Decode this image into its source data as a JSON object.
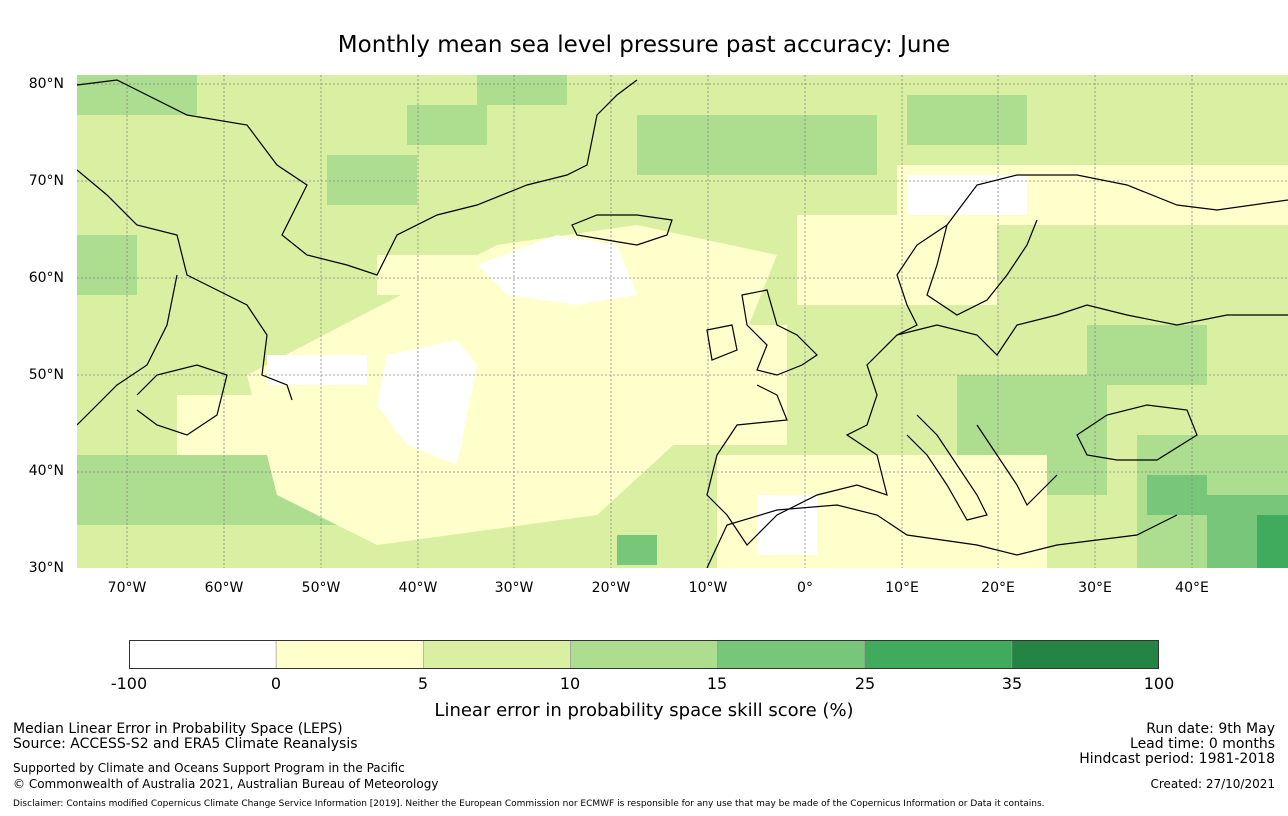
{
  "title": "Monthly mean sea level pressure past accuracy: June",
  "map": {
    "lat_labels": [
      "80°N",
      "70°N",
      "60°N",
      "50°N",
      "40°N",
      "30°N"
    ],
    "lon_labels": [
      "70°W",
      "60°W",
      "50°W",
      "40°W",
      "30°W",
      "20°W",
      "10°W",
      "0°",
      "10°E",
      "20°E",
      "30°E",
      "40°E"
    ],
    "colors": {
      "-100_0": "#ffffff",
      "0_5": "#ffffcc",
      "5_10": "#d9efa1",
      "10_15": "#addd8e",
      "15_25": "#78c679",
      "25_35": "#41ab5d",
      "35_100": "#238443"
    }
  },
  "colorbar": {
    "ticks": [
      "-100",
      "0",
      "5",
      "10",
      "15",
      "25",
      "35",
      "100"
    ],
    "colors": [
      "#ffffff",
      "#ffffcc",
      "#d9efa1",
      "#addd8e",
      "#78c679",
      "#41ab5d",
      "#238443"
    ],
    "label": "Linear error in probability space skill score (%)"
  },
  "footer": {
    "left_line1": "Median Linear Error in Probability Space (LEPS)",
    "left_line2": "Source: ACCESS-S2 and ERA5 Climate Reanalysis",
    "left_line3": "Supported by Climate and Oceans Support Program in the Pacific",
    "left_line4": "© Commonwealth of Australia 2021, Australian Bureau of Meteorology",
    "right_line1": "Run date: 9th May",
    "right_line2": "Lead time: 0 months",
    "right_line3": "Hindcast period: 1981-2018",
    "right_line4": "Created: 27/10/2021",
    "disclaimer": "Disclaimer: Contains modified Copernicus Climate Change Service Information [2019]. Neither the European Commission nor ECMWF is responsible for any use that may be made of the Copernicus Information or Data it contains."
  }
}
